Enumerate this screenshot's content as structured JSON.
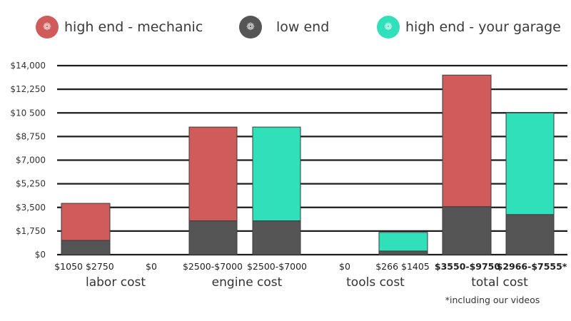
{
  "colors": {
    "high_end_mechanic": "#cf5c5a",
    "low_end": "#555555",
    "high_end_your_garage": "#2fe0bb",
    "gridline": "#1c1c1c"
  },
  "legend": [
    {
      "label": "high end - mechanic",
      "color": "#cf5c5a",
      "icon": "leaf-icon"
    },
    {
      "label": "low end",
      "color": "#555555",
      "icon": "leaf-icon"
    },
    {
      "label": "high end - your garage",
      "color": "#2fe0bb",
      "icon": "leaf-icon"
    }
  ],
  "chart_data": {
    "type": "bar",
    "stacked": true,
    "ylim": [
      0,
      14000
    ],
    "y_ticks": [
      0,
      1750,
      3500,
      5250,
      7000,
      8750,
      10500,
      12250,
      14000
    ],
    "y_tick_labels": [
      "$0",
      "$1,750",
      "$3,500",
      "$5,250",
      "$7,000",
      "$8,750",
      "$10 500",
      "$12,250",
      "$14,000"
    ],
    "grid": true,
    "legend_position": "top",
    "groups": [
      {
        "label": "labor cost",
        "bars": [
          {
            "series": "high end - mechanic",
            "low": 1050,
            "high": 3800,
            "range_label": "$1050 $2750"
          },
          {
            "series": "high end - your garage",
            "low": 0,
            "high": 0,
            "range_label": "$0"
          }
        ]
      },
      {
        "label": "engine cost",
        "bars": [
          {
            "series": "high end - mechanic",
            "low": 2500,
            "high": 9450,
            "range_label": "$2500-$7000"
          },
          {
            "series": "high end - your garage",
            "low": 2500,
            "high": 9450,
            "range_label": "$2500-$7000"
          }
        ]
      },
      {
        "label": "tools cost",
        "bars": [
          {
            "series": "high end - mechanic",
            "low": 0,
            "high": 0,
            "range_label": "$0"
          },
          {
            "series": "high end - your garage",
            "low": 266,
            "high": 1650,
            "range_label": "$266 $1405"
          }
        ]
      },
      {
        "label": "total cost",
        "bars": [
          {
            "series": "high end - mechanic",
            "low": 3550,
            "high": 13300,
            "range_label": "$3550-$9750"
          },
          {
            "series": "high end - your garage",
            "low": 2966,
            "high": 10500,
            "range_label": "$2966-$7555*"
          }
        ]
      }
    ],
    "footnote": "*including our videos"
  }
}
